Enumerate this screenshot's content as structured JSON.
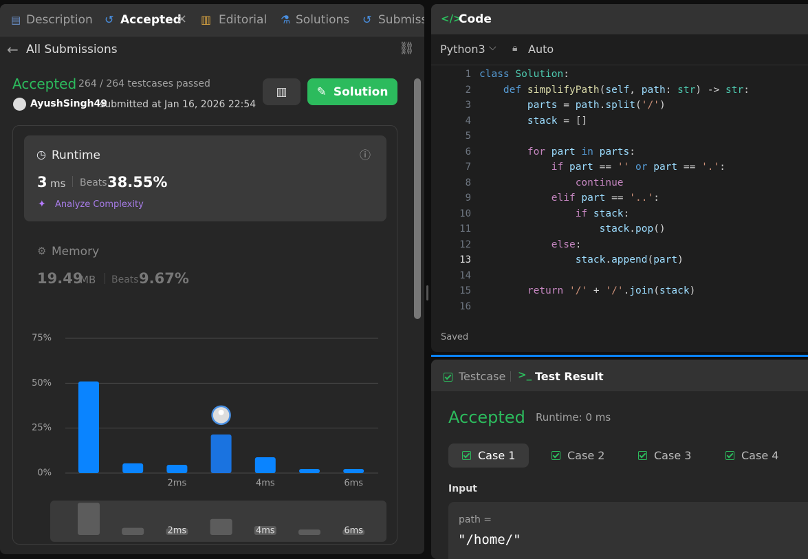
{
  "tabs": [
    "Description",
    "Accepted",
    "Editorial",
    "Solutions",
    "Submissions"
  ],
  "back_link": "All Submissions",
  "submission": {
    "status": "Accepted",
    "testcases": "264 / 264 testcases passed",
    "user": "AyushSingh49",
    "submitted": "submitted at Jan 16, 2026 22:54",
    "solution_button": "Solution"
  },
  "runtime": {
    "label": "Runtime",
    "value": "3",
    "unit": "ms",
    "beats_label": "Beats",
    "beats": "38.55%",
    "analyze": "Analyze Complexity"
  },
  "memory": {
    "label": "Memory",
    "value": "19.49",
    "unit": "MB",
    "beats_label": "Beats",
    "beats": "9.67%"
  },
  "chart_data": {
    "type": "bar",
    "categories": [
      null,
      null,
      "2ms",
      null,
      "4ms",
      null,
      "6ms"
    ],
    "values": [
      51,
      5.4,
      4.6,
      21.5,
      8.8,
      2.3,
      2.3
    ],
    "color": "#0a84ff",
    "highlight_color": "#1a73e0",
    "highlight_index": 3,
    "ylim": [
      0,
      75
    ],
    "yticks": [
      {
        "value": 0,
        "label": "0%"
      },
      {
        "value": 25,
        "label": "25%"
      },
      {
        "value": 50,
        "label": "50%"
      },
      {
        "value": 75,
        "label": "75%"
      }
    ],
    "grid": true
  },
  "editor": {
    "title": "Code",
    "language": "Python3",
    "mode": "Auto",
    "current_line": 13,
    "status": "Saved",
    "lines": [
      {
        "n": 1,
        "code": "class Solution:"
      },
      {
        "n": 2,
        "code": "    def simplifyPath(self, path: str) -> str:"
      },
      {
        "n": 3,
        "code": "        parts = path.split('/')"
      },
      {
        "n": 4,
        "code": "        stack = []"
      },
      {
        "n": 5,
        "code": ""
      },
      {
        "n": 6,
        "code": "        for part in parts:"
      },
      {
        "n": 7,
        "code": "            if part == '' or part == '.':"
      },
      {
        "n": 8,
        "code": "                continue"
      },
      {
        "n": 9,
        "code": "            elif part == '..':"
      },
      {
        "n": 10,
        "code": "                if stack:"
      },
      {
        "n": 11,
        "code": "                    stack.pop()"
      },
      {
        "n": 12,
        "code": "            else:"
      },
      {
        "n": 13,
        "code": "                stack.append(part)"
      },
      {
        "n": 14,
        "code": ""
      },
      {
        "n": 15,
        "code": "        return '/' + '/'.join(stack)"
      },
      {
        "n": 16,
        "code": ""
      }
    ]
  },
  "console": {
    "tabs": [
      "Testcase",
      "Test Result"
    ],
    "status": "Accepted",
    "runtime": "Runtime: 0 ms",
    "cases": [
      "Case 1",
      "Case 2",
      "Case 3",
      "Case 4"
    ],
    "input_label": "Input",
    "param": "path =",
    "param_value": "\"/home/\""
  }
}
